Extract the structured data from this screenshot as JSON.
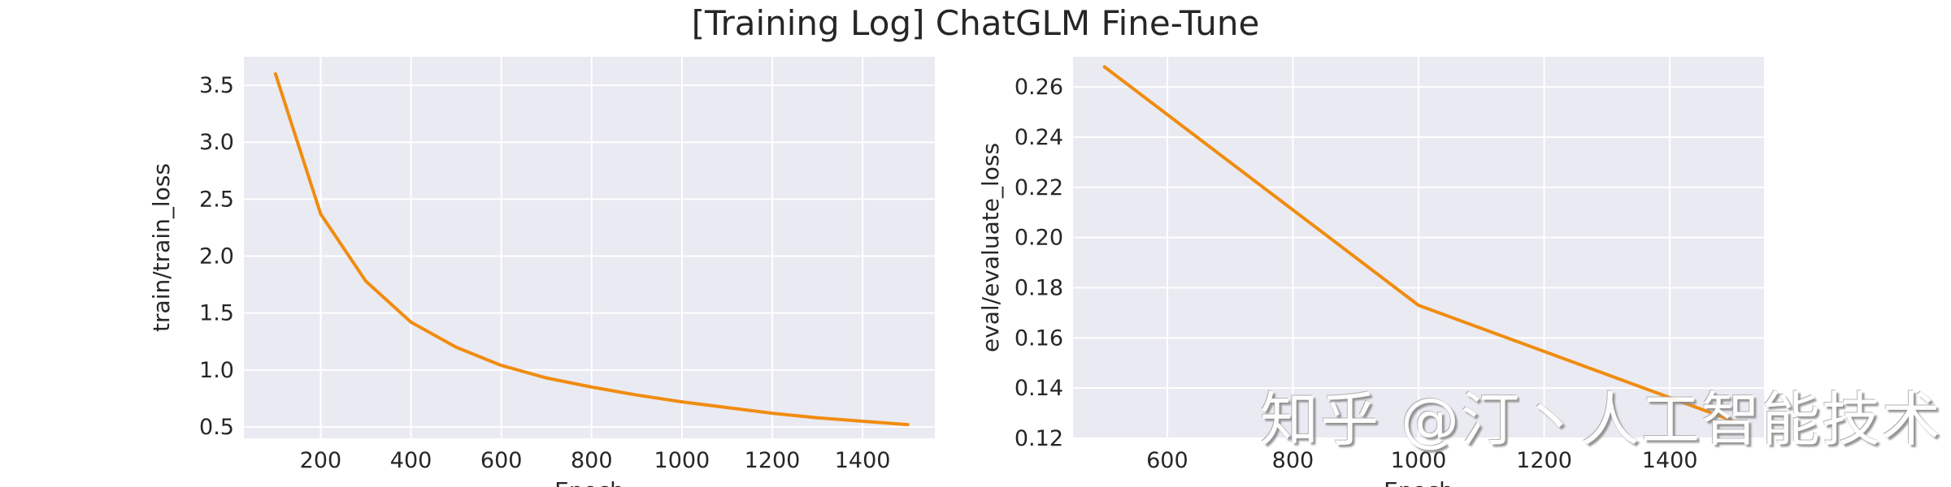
{
  "title": "[Training Log] ChatGLM Fine-Tune",
  "watermark": "知乎 @汀丶人工智能技术",
  "colors": {
    "line": "#f08c0f",
    "panel": "#eaeaf2",
    "grid": "#ffffff",
    "text": "#262626"
  },
  "chart_data": [
    {
      "type": "line",
      "xlabel": "Epoch",
      "ylabel": "train/train_loss",
      "xlim": [
        30,
        1560
      ],
      "ylim": [
        0.4,
        3.75
      ],
      "xticks": [
        200,
        400,
        600,
        800,
        1000,
        1200,
        1400
      ],
      "yticks": [
        0.5,
        1.0,
        1.5,
        2.0,
        2.5,
        3.0,
        3.5
      ],
      "ytick_labels": [
        "0.5",
        "1.0",
        "1.5",
        "2.0",
        "2.5",
        "3.0",
        "3.5"
      ],
      "grid": true,
      "series": [
        {
          "x": [
            100,
            200,
            300,
            400,
            500,
            600,
            700,
            800,
            900,
            1000,
            1100,
            1200,
            1300,
            1400,
            1500
          ],
          "values": [
            3.6,
            2.37,
            1.78,
            1.42,
            1.2,
            1.04,
            0.93,
            0.85,
            0.78,
            0.72,
            0.67,
            0.62,
            0.58,
            0.55,
            0.52
          ]
        }
      ]
    },
    {
      "type": "line",
      "xlabel": "Epoch",
      "ylabel": "eval/evaluate_loss",
      "xlim": [
        450,
        1550
      ],
      "ylim": [
        0.12,
        0.272
      ],
      "xticks": [
        600,
        800,
        1000,
        1200,
        1400
      ],
      "yticks": [
        0.12,
        0.14,
        0.16,
        0.18,
        0.2,
        0.22,
        0.24,
        0.26
      ],
      "ytick_labels": [
        "0.12",
        "0.14",
        "0.16",
        "0.18",
        "0.20",
        "0.22",
        "0.24",
        "0.26"
      ],
      "grid": true,
      "series": [
        {
          "x": [
            500,
            1000,
            1500
          ],
          "values": [
            0.268,
            0.173,
            0.127
          ]
        }
      ]
    }
  ]
}
